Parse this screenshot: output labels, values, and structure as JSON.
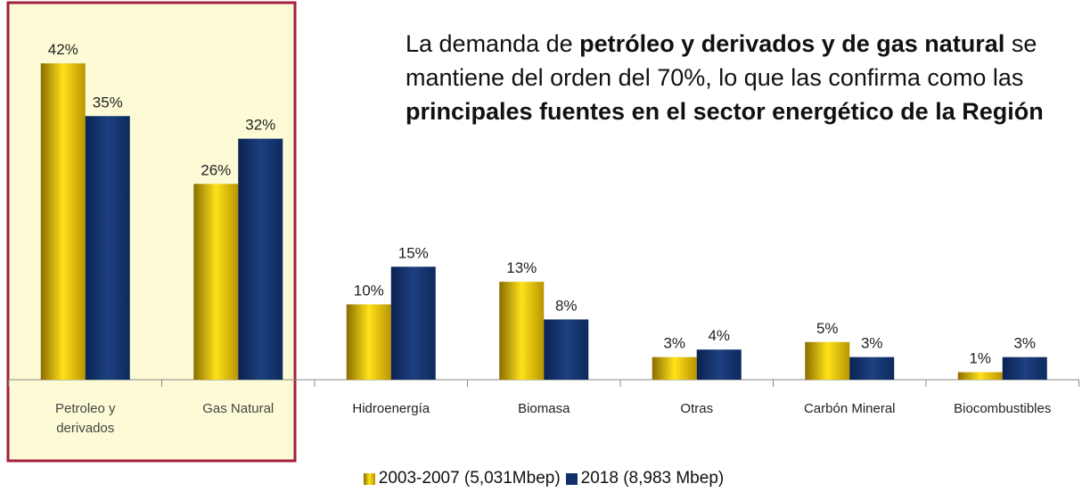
{
  "chart_data": {
    "type": "bar",
    "annotation": [
      "La demanda de ",
      "petróleo y derivados y de gas natural",
      " se mantiene del orden del 70%, lo que las confirma como las ",
      "principales fuentes en el sector energético de la Región"
    ],
    "categories": [
      "Petroleo y derivados",
      "Gas Natural",
      "Hidroenergía",
      "Biomasa",
      "Otras",
      "Carbón Mineral",
      "Biocombustibles"
    ],
    "series": [
      {
        "name": "2003-2007 (5,031Mbep)",
        "color": "#f2c800",
        "values": [
          42,
          26,
          10,
          13,
          3,
          5,
          1
        ],
        "value_labels": [
          "42%",
          "26%",
          "10%",
          "13%",
          "3%",
          "5%",
          "1%"
        ]
      },
      {
        "name": "2018 (8,983 Mbep)",
        "color": "#12316a",
        "values": [
          35,
          32,
          15,
          8,
          4,
          3,
          3
        ],
        "value_labels": [
          "35%",
          "32%",
          "15%",
          "8%",
          "4%",
          "3%",
          "3%"
        ]
      }
    ],
    "legend": "bottom"
  }
}
